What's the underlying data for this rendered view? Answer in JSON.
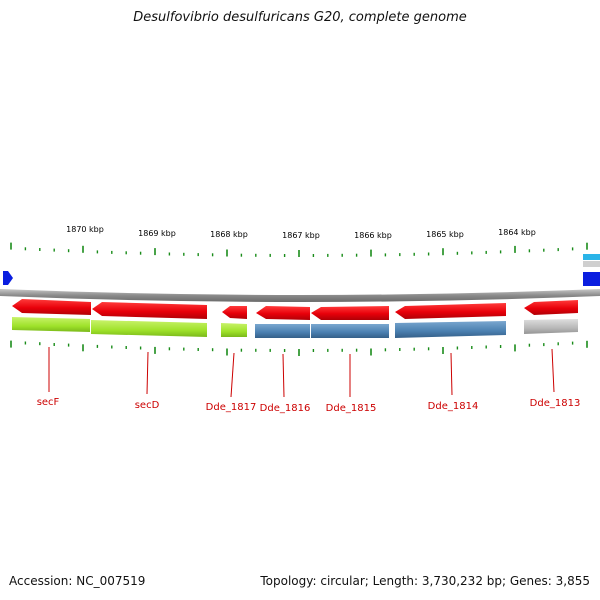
{
  "title": "Desulfovibrio desulfuricans G20, complete genome",
  "footer": {
    "accession": "Accession: NC_007519",
    "topology": "Topology: circular; Length: 3,730,232 bp; Genes: 3,855"
  },
  "ruler_labels": [
    "1870 kbp",
    "1869 kbp",
    "1868 kbp",
    "1867 kbp",
    "1866 kbp",
    "1865 kbp",
    "1864 kbp"
  ],
  "genes": [
    "secF",
    "secD",
    "Dde_1817",
    "Dde_1816",
    "Dde_1815",
    "Dde_1814",
    "Dde_1813"
  ],
  "colors": {
    "gene_arrow": "#e8000a",
    "class_green": "#9fe22a",
    "class_blue": "#4a7fb0",
    "class_gray": "#b8b8b8",
    "backbone": "#8a8a8a",
    "tick": "#1a8c1a",
    "label": "#cc0000",
    "partial_blue": "#0a1ee0",
    "partial_cyan": "#2ab4e8"
  }
}
